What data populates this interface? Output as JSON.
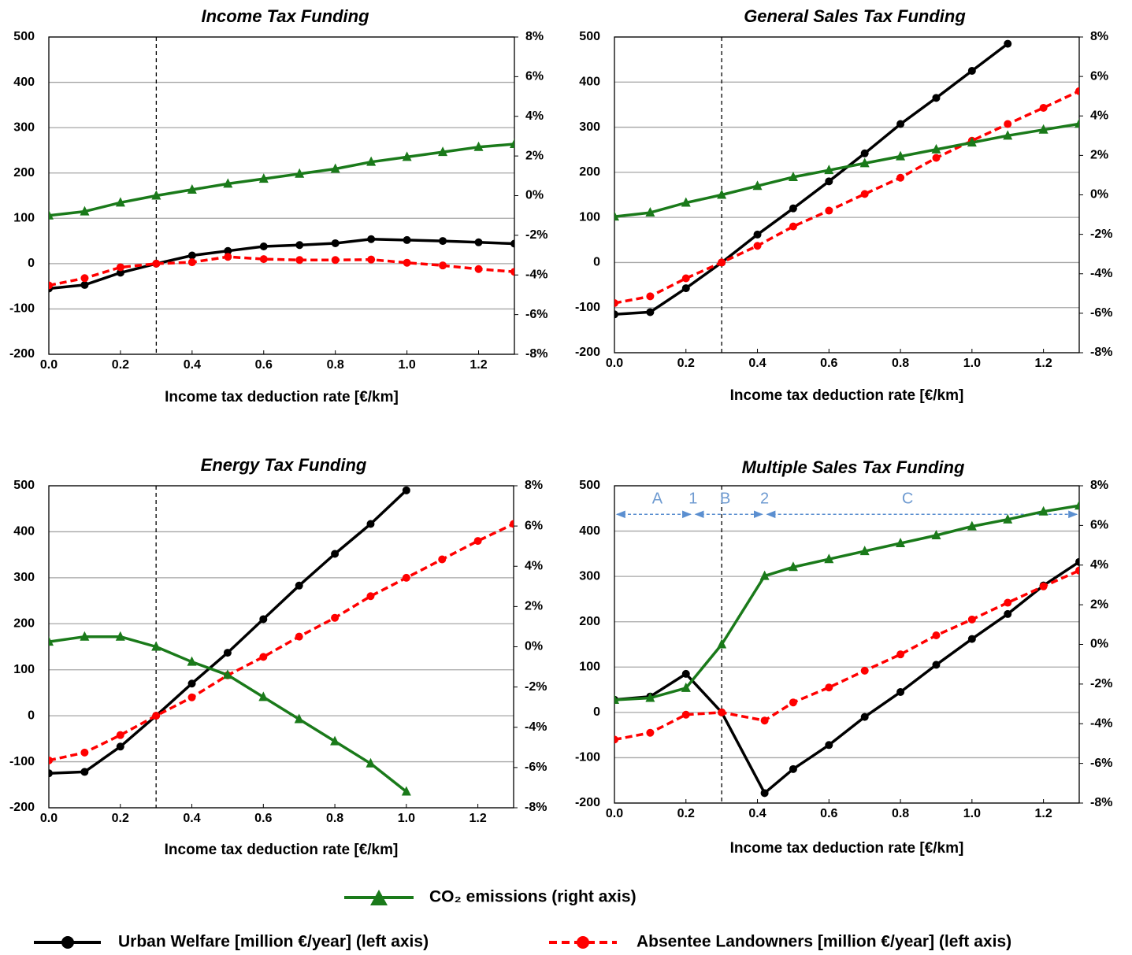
{
  "chart_data": [
    {
      "type": "line",
      "title": "Income Tax Funding",
      "xlabel": "Income tax deduction rate [€/km]",
      "x": [
        0,
        0.1,
        0.2,
        0.3,
        0.4,
        0.5,
        0.6,
        0.7,
        0.8,
        0.9,
        1.0,
        1.1,
        1.2,
        1.3
      ],
      "xlim": [
        0,
        1.3
      ],
      "xticks": [
        {
          "value": 0,
          "label": "0.0"
        },
        0.2,
        0.4,
        0.6,
        0.8,
        {
          "value": 1,
          "label": "1.0"
        },
        1.2
      ],
      "ylim": [
        -200,
        500
      ],
      "yticks": [
        -200,
        -100,
        0,
        100,
        200,
        300,
        400,
        500
      ],
      "y2lim": [
        -8,
        8
      ],
      "y2ticks": [
        {
          "value": -8,
          "label": "-8%"
        },
        {
          "value": -6,
          "label": "-6%"
        },
        {
          "value": -4,
          "label": "-4%"
        },
        {
          "value": -2,
          "label": "-2%"
        },
        {
          "value": 0,
          "label": "0%"
        },
        {
          "value": 2,
          "label": "2%"
        },
        {
          "value": 4,
          "label": "4%"
        },
        {
          "value": 6,
          "label": "6%"
        },
        {
          "value": 8,
          "label": "8%"
        }
      ],
      "grid": true,
      "vline": 0.3,
      "series": [
        {
          "name": "Urban Welfare [million €/year] (left axis)",
          "color": "#000000",
          "marker": "circle",
          "values": [
            -55,
            -47,
            -20,
            0,
            18,
            28,
            38,
            41,
            45,
            54,
            52,
            50,
            47,
            44
          ]
        },
        {
          "name": "Absentee Landowners [million €/year] (left axis)",
          "color": "#ff0000",
          "marker": "circle",
          "dashed": true,
          "values": [
            -48,
            -32,
            -8,
            0,
            3,
            15,
            10,
            8,
            8,
            9,
            2,
            -4,
            -12,
            -18
          ]
        },
        {
          "name": "CO₂ emissions (right axis)",
          "color": "#1a7a1a",
          "marker": "triangle",
          "axis": "y2",
          "values": [
            -1.0,
            -0.8,
            -0.35,
            0,
            0.3,
            0.6,
            0.85,
            1.1,
            1.35,
            1.7,
            1.95,
            2.2,
            2.45,
            2.6
          ]
        }
      ]
    },
    {
      "type": "line",
      "title": "General Sales Tax Funding",
      "xlabel": "Income tax deduction rate [€/km]",
      "x": [
        0,
        0.1,
        0.2,
        0.3,
        0.4,
        0.5,
        0.6,
        0.7,
        0.8,
        0.9,
        1.0,
        1.1,
        1.2,
        1.3
      ],
      "xlim": [
        0,
        1.3
      ],
      "xticks": [
        {
          "value": 0,
          "label": "0.0"
        },
        0.2,
        0.4,
        0.6,
        0.8,
        {
          "value": 1,
          "label": "1.0"
        },
        1.2
      ],
      "ylim": [
        -200,
        500
      ],
      "yticks": [
        -200,
        -100,
        0,
        100,
        200,
        300,
        400,
        500
      ],
      "y2lim": [
        -8,
        8
      ],
      "y2ticks": [
        {
          "value": -8,
          "label": "-8%"
        },
        {
          "value": -6,
          "label": "-6%"
        },
        {
          "value": -4,
          "label": "-4%"
        },
        {
          "value": -2,
          "label": "-2%"
        },
        {
          "value": 0,
          "label": "0%"
        },
        {
          "value": 2,
          "label": "2%"
        },
        {
          "value": 4,
          "label": "4%"
        },
        {
          "value": 6,
          "label": "6%"
        },
        {
          "value": 8,
          "label": "8%"
        }
      ],
      "grid": true,
      "vline": 0.3,
      "series": [
        {
          "color": "#000000",
          "marker": "circle",
          "values": [
            -115,
            -110,
            -57,
            0,
            62,
            120,
            180,
            242,
            307,
            365,
            425,
            485,
            null,
            null
          ]
        },
        {
          "color": "#ff0000",
          "marker": "circle",
          "dashed": true,
          "values": [
            -90,
            -75,
            -35,
            0,
            37,
            80,
            115,
            152,
            188,
            232,
            270,
            307,
            343,
            380
          ]
        },
        {
          "color": "#1a7a1a",
          "marker": "triangle",
          "axis": "y2",
          "values": [
            -1.1,
            -0.9,
            -0.4,
            0,
            0.45,
            0.9,
            1.25,
            1.6,
            1.95,
            2.3,
            2.65,
            3.0,
            3.3,
            3.6
          ]
        }
      ]
    },
    {
      "type": "line",
      "title": "Energy Tax Funding",
      "xlabel": "Income tax deduction rate [€/km]",
      "x": [
        0,
        0.1,
        0.2,
        0.3,
        0.4,
        0.5,
        0.6,
        0.7,
        0.8,
        0.9,
        1.0,
        1.1,
        1.2,
        1.3
      ],
      "xlim": [
        0,
        1.3
      ],
      "xticks": [
        {
          "value": 0,
          "label": "0.0"
        },
        0.2,
        0.4,
        0.6,
        0.8,
        {
          "value": 1,
          "label": "1.0"
        },
        1.2
      ],
      "ylim": [
        -200,
        500
      ],
      "yticks": [
        -200,
        -100,
        0,
        100,
        200,
        300,
        400,
        500
      ],
      "y2lim": [
        -8,
        8
      ],
      "y2ticks": [
        {
          "value": -8,
          "label": "-8%"
        },
        {
          "value": -6,
          "label": "-6%"
        },
        {
          "value": -4,
          "label": "-4%"
        },
        {
          "value": -2,
          "label": "-2%"
        },
        {
          "value": 0,
          "label": "0%"
        },
        {
          "value": 2,
          "label": "2%"
        },
        {
          "value": 4,
          "label": "4%"
        },
        {
          "value": 6,
          "label": "6%"
        },
        {
          "value": 8,
          "label": "8%"
        }
      ],
      "grid": true,
      "vline": 0.3,
      "series": [
        {
          "color": "#000000",
          "marker": "circle",
          "values": [
            -125,
            -122,
            -67,
            0,
            70,
            137,
            210,
            283,
            352,
            417,
            490,
            null,
            null,
            null
          ]
        },
        {
          "color": "#ff0000",
          "marker": "circle",
          "dashed": true,
          "values": [
            -97,
            -80,
            -42,
            0,
            40,
            88,
            128,
            172,
            213,
            260,
            300,
            340,
            380,
            417
          ]
        },
        {
          "color": "#1a7a1a",
          "marker": "triangle",
          "axis": "y2",
          "values": [
            0.25,
            0.5,
            0.5,
            0,
            -0.75,
            -1.4,
            -2.5,
            -3.6,
            -4.7,
            -5.8,
            -7.2,
            null,
            null,
            null
          ]
        }
      ]
    },
    {
      "type": "line",
      "title": "Multiple Sales Tax Funding",
      "xlabel": "Income tax deduction rate [€/km]",
      "x": [
        0,
        0.1,
        0.2,
        0.3,
        0.42,
        0.5,
        0.6,
        0.7,
        0.8,
        0.9,
        1.0,
        1.1,
        1.2,
        1.3
      ],
      "xlim": [
        0,
        1.3
      ],
      "xticks": [
        {
          "value": 0,
          "label": "0.0"
        },
        0.2,
        0.4,
        0.6,
        0.8,
        {
          "value": 1,
          "label": "1.0"
        },
        1.2
      ],
      "ylim": [
        -200,
        500
      ],
      "yticks": [
        -200,
        -100,
        0,
        100,
        200,
        300,
        400,
        500
      ],
      "y2lim": [
        -8,
        8
      ],
      "y2ticks": [
        {
          "value": -8,
          "label": "-8%"
        },
        {
          "value": -6,
          "label": "-6%"
        },
        {
          "value": -4,
          "label": "-4%"
        },
        {
          "value": -2,
          "label": "-2%"
        },
        {
          "value": 0,
          "label": "0%"
        },
        {
          "value": 2,
          "label": "2%"
        },
        {
          "value": 4,
          "label": "4%"
        },
        {
          "value": 6,
          "label": "6%"
        },
        {
          "value": 8,
          "label": "8%"
        }
      ],
      "grid": true,
      "vline": 0.3,
      "series": [
        {
          "color": "#000000",
          "marker": "circle",
          "values": [
            28,
            35,
            85,
            0,
            -178,
            -125,
            -72,
            -10,
            45,
            105,
            162,
            217,
            280,
            332
          ]
        },
        {
          "color": "#ff0000",
          "marker": "circle",
          "dashed": true,
          "values": [
            -60,
            -45,
            -5,
            0,
            -18,
            22,
            55,
            92,
            128,
            170,
            205,
            242,
            278,
            313
          ]
        },
        {
          "color": "#1a7a1a",
          "marker": "triangle",
          "axis": "y2",
          "values": [
            -2.8,
            -2.7,
            -2.2,
            0,
            3.45,
            3.9,
            4.3,
            4.7,
            5.1,
            5.5,
            5.95,
            6.3,
            6.7,
            7.0
          ]
        }
      ],
      "annotations": [
        {
          "text": "A",
          "x": 0.12,
          "y": 470
        },
        {
          "text": "1",
          "x": 0.22,
          "y": 470
        },
        {
          "text": "B",
          "x": 0.31,
          "y": 470
        },
        {
          "text": "2",
          "x": 0.42,
          "y": 470
        },
        {
          "text": "C",
          "x": 0.82,
          "y": 470
        }
      ],
      "arrow_breaks": [
        0,
        0.22,
        0.42,
        1.3
      ],
      "arrow_y": 437
    }
  ]
}
